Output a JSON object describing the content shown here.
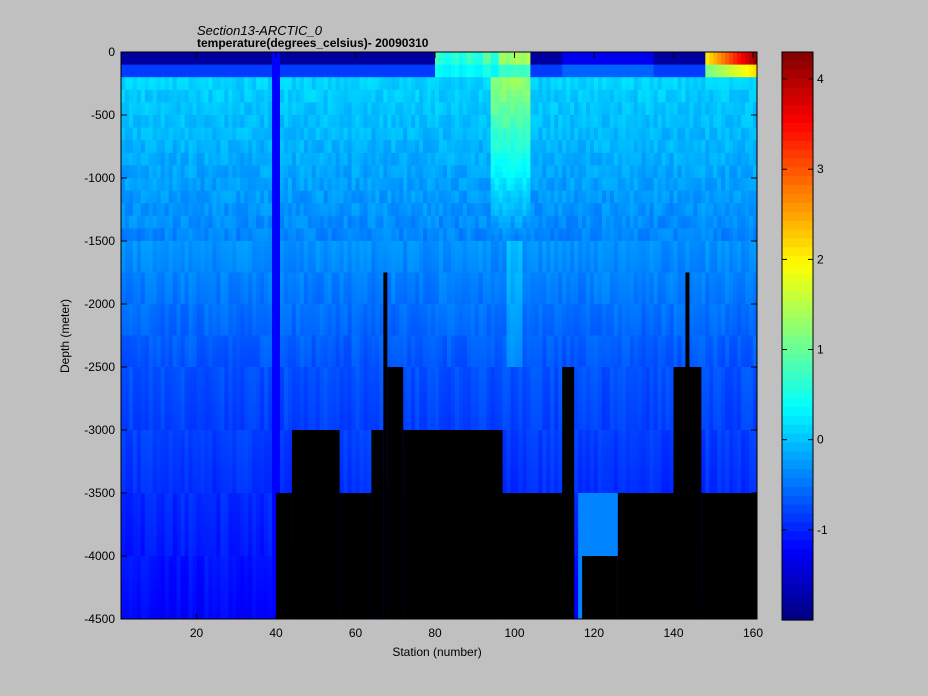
{
  "chart_data": {
    "type": "heatmap",
    "title": "Section13-ARCTIC_0",
    "subtitle": "temperature(degrees_celsius)- 20090310",
    "xlabel": "Station (number)",
    "ylabel": "Depth (meter)",
    "xlim": [
      1,
      161
    ],
    "ylim": [
      -4500,
      0
    ],
    "x_ticks": [
      20,
      40,
      60,
      80,
      100,
      120,
      140,
      160
    ],
    "y_ticks": [
      0,
      -500,
      -1000,
      -1500,
      -2000,
      -2500,
      -3000,
      -3500,
      -4000,
      -4500
    ],
    "colorbar": {
      "range": [
        -2.0,
        4.3
      ],
      "ticks": [
        4,
        3,
        2,
        1,
        0,
        -1
      ],
      "colormap": "jet"
    },
    "surface_band": {
      "depth_range": [
        0,
        -200
      ],
      "temperature_range": [
        -1.8,
        4.2
      ]
    },
    "intermediate_layer_temperature": 0.1,
    "deep_layer_temperature": -0.9,
    "no_data_color": "#000000",
    "notable_features": [
      {
        "station": 40,
        "description": "vertical cold column",
        "temperature": -1.2
      },
      {
        "station": 98,
        "description": "warm plume from surface",
        "depth_range": [
          0,
          -1000
        ],
        "temperature": 1.3
      },
      {
        "station": 157,
        "description": "warmest surface water",
        "temperature": 4.2
      }
    ],
    "bathymetry": [
      {
        "station_range": [
          40,
          44
        ],
        "seafloor_depth": -3500
      },
      {
        "station_range": [
          44,
          56
        ],
        "seafloor_depth": -3000
      },
      {
        "station_range": [
          56,
          64
        ],
        "seafloor_depth": -3500
      },
      {
        "station_range": [
          64,
          67
        ],
        "seafloor_depth": -3000
      },
      {
        "station_range": [
          67,
          68
        ],
        "seafloor_depth": -1750
      },
      {
        "station_range": [
          68,
          72
        ],
        "seafloor_depth": -2500
      },
      {
        "station_range": [
          72,
          97
        ],
        "seafloor_depth": -3000
      },
      {
        "station_range": [
          97,
          115
        ],
        "seafloor_depth": -3500
      },
      {
        "station_range": [
          112,
          115
        ],
        "seafloor_depth": -2500
      },
      {
        "station_range": [
          117,
          126
        ],
        "seafloor_depth": -4000
      },
      {
        "station_range": [
          126,
          140
        ],
        "seafloor_depth": -3500
      },
      {
        "station_range": [
          140,
          147
        ],
        "seafloor_depth": -2500
      },
      {
        "station_range": [
          143,
          144
        ],
        "seafloor_depth": -1750
      },
      {
        "station_range": [
          147,
          161
        ],
        "seafloor_depth": -3500
      }
    ]
  },
  "colors": {
    "background": "#c0c0c0",
    "no_data": "#000000"
  }
}
